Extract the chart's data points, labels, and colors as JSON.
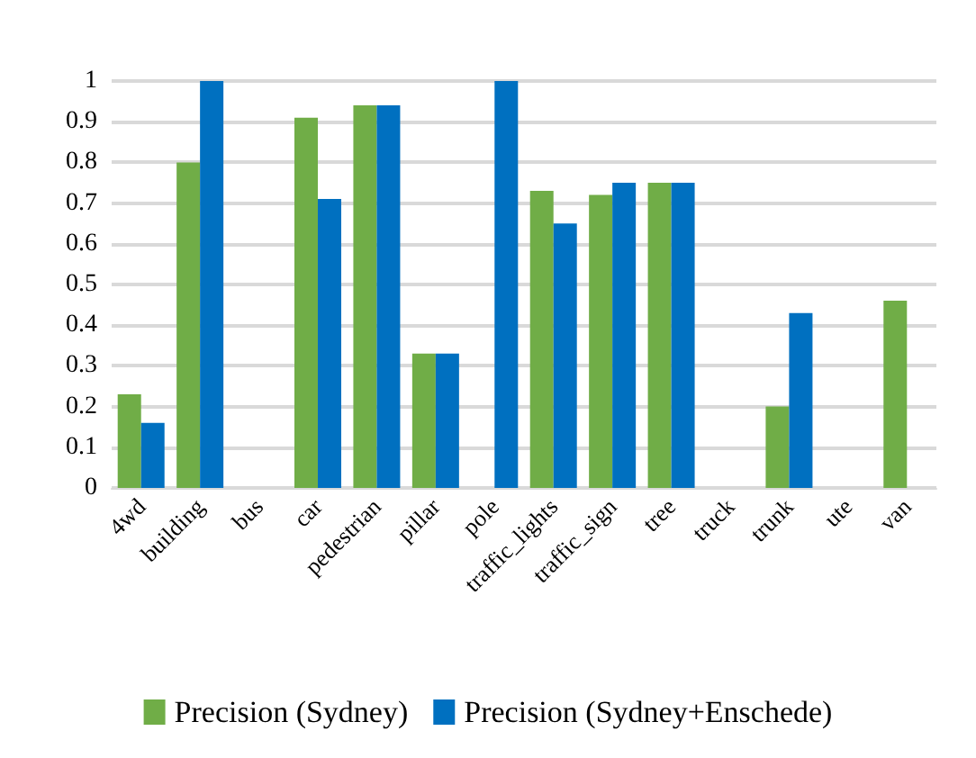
{
  "chart_data": {
    "type": "bar",
    "categories": [
      "4wd",
      "building",
      "bus",
      "car",
      "pedestrian",
      "pillar",
      "pole",
      "traffic_lights",
      "traffic_sign",
      "tree",
      "truck",
      "trunk",
      "ute",
      "van"
    ],
    "series": [
      {
        "name": "Precision (Sydney)",
        "color": "#70ad47",
        "values": [
          0.23,
          0.8,
          0,
          0.91,
          0.94,
          0.33,
          0,
          0.73,
          0.72,
          0.75,
          0,
          0.2,
          0,
          0.46
        ]
      },
      {
        "name": "Precision (Sydney+Enschede)",
        "color": "#0070c0",
        "values": [
          0.16,
          1,
          0,
          0.71,
          0.94,
          0.33,
          1,
          0.65,
          0.75,
          0.75,
          0,
          0.43,
          0,
          0
        ]
      }
    ],
    "ylim": [
      0,
      1
    ],
    "yticks": [
      0,
      0.1,
      0.2,
      0.3,
      0.4,
      0.5,
      0.6,
      0.7,
      0.8,
      0.9,
      1
    ],
    "grid": "y",
    "legend": "bottom"
  }
}
